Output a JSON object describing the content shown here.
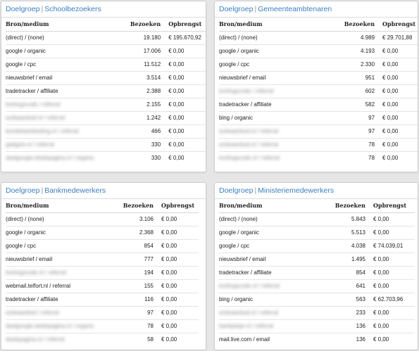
{
  "panels": [
    {
      "prefix": "Doelgroep",
      "separator": "|",
      "name": "Schoolbezoekers",
      "headers": {
        "source": "Bron/medium",
        "visits": "Bezoeken",
        "revenue": "Opbrengst"
      },
      "rows": [
        {
          "source": "(direct) / (none)",
          "visits": "19.180",
          "revenue": "€ 195.670,92"
        },
        {
          "source": "google / organic",
          "visits": "17.006",
          "revenue": "€ 0,00"
        },
        {
          "source": "google / cpc",
          "visits": "11.512",
          "revenue": "€ 0,00"
        },
        {
          "source": "nieuwsbrief / email",
          "visits": "3.514",
          "revenue": "€ 0,00"
        },
        {
          "source": "tradetracker / affiliate",
          "visits": "2.388",
          "revenue": "€ 0,00"
        },
        {
          "source": "kortingscode / referral",
          "visits": "2.155",
          "revenue": "€ 0,00",
          "blurred": true
        },
        {
          "source": "actieaanbod.nl / referral",
          "visits": "1.242",
          "revenue": "€ 0,00",
          "blurred": true
        },
        {
          "source": "bundelaanbieding.nl / referral",
          "visits": "466",
          "revenue": "€ 0,00",
          "blurred": true
        },
        {
          "source": "gadgets.nl / referral",
          "visits": "330",
          "revenue": "€ 0,00",
          "blurred": true
        },
        {
          "source": "dealgoogle.dealspagina.nl / organic",
          "visits": "330",
          "revenue": "€ 0,00",
          "blurred": true
        }
      ]
    },
    {
      "prefix": "Doelgroep",
      "separator": "|",
      "name": "Gemeenteambtenaren",
      "headers": {
        "source": "Bron/medium",
        "visits": "Bezoeken",
        "revenue": "Opbrengst"
      },
      "rows": [
        {
          "source": "(direct) / (none)",
          "visits": "4.989",
          "revenue": "€ 29.701,88"
        },
        {
          "source": "google / organic",
          "visits": "4.193",
          "revenue": "€ 0,00"
        },
        {
          "source": "google / cpc",
          "visits": "2.330",
          "revenue": "€ 0,00"
        },
        {
          "source": "nieuwsbrief / email",
          "visits": "951",
          "revenue": "€ 0,00"
        },
        {
          "source": "kortingscode / referral",
          "visits": "602",
          "revenue": "€ 0,00",
          "blurred": true
        },
        {
          "source": "tradetracker / affiliate",
          "visits": "582",
          "revenue": "€ 0,00"
        },
        {
          "source": "bing / organic",
          "visits": "97",
          "revenue": "€ 0,00"
        },
        {
          "source": "actieaanbod.nl / referral",
          "visits": "97",
          "revenue": "€ 0,00",
          "blurred": true
        },
        {
          "source": "actieaanbod.nl / referral",
          "visits": "78",
          "revenue": "€ 0,00",
          "blurred": true
        },
        {
          "source": "kortingscode.nl / referral",
          "visits": "78",
          "revenue": "€ 0,00",
          "blurred": true
        }
      ]
    },
    {
      "prefix": "Doelgroep",
      "separator": "|",
      "name": "Bankmedewerkers",
      "headers": {
        "source": "Bron/medium",
        "visits": "Bezoeken",
        "revenue": "Opbrengst"
      },
      "rows": [
        {
          "source": "(direct) / (none)",
          "visits": "3.106",
          "revenue": "€ 0,00"
        },
        {
          "source": "google / organic",
          "visits": "2.368",
          "revenue": "€ 0,00"
        },
        {
          "source": "google / cpc",
          "visits": "854",
          "revenue": "€ 0,00"
        },
        {
          "source": "nieuwsbrief / email",
          "visits": "777",
          "revenue": "€ 0,00"
        },
        {
          "source": "kortingscode.nl / referral",
          "visits": "194",
          "revenue": "€ 0,00",
          "blurred": true
        },
        {
          "source": "webmail.telfort.nl / referral",
          "visits": "155",
          "revenue": "€ 0,00"
        },
        {
          "source": "tradetracker / affiliate",
          "visits": "116",
          "revenue": "€ 0,00"
        },
        {
          "source": "actieaanbod / referral",
          "visits": "97",
          "revenue": "€ 0,00",
          "blurred": true
        },
        {
          "source": "dealgoogle.dealspagina.nl / organic",
          "visits": "78",
          "revenue": "€ 0,00",
          "blurred": true
        },
        {
          "source": "dealspagina.nl / referral",
          "visits": "58",
          "revenue": "€ 0,00",
          "blurred": true
        }
      ]
    },
    {
      "prefix": "Doelgroep",
      "separator": "|",
      "name": "Ministeriemedewerkers",
      "headers": {
        "source": "Bron/medium",
        "visits": "Bezoeken",
        "revenue": "Opbrengst"
      },
      "rows": [
        {
          "source": "(direct) / (none)",
          "visits": "5.843",
          "revenue": "€ 0,00"
        },
        {
          "source": "google / organic",
          "visits": "5.513",
          "revenue": "€ 0,00"
        },
        {
          "source": "google / cpc",
          "visits": "4.038",
          "revenue": "€ 74.039,01"
        },
        {
          "source": "nieuwsbrief / email",
          "visits": "1.495",
          "revenue": "€ 0,00"
        },
        {
          "source": "tradetracker / affiliate",
          "visits": "854",
          "revenue": "€ 0,00"
        },
        {
          "source": "kortingscode.nl / referral",
          "visits": "641",
          "revenue": "€ 0,00",
          "blurred": true
        },
        {
          "source": "bing / organic",
          "visits": "563",
          "revenue": "€ 62.703,96"
        },
        {
          "source": "actieaanbod.nl / referral",
          "visits": "233",
          "revenue": "€ 0,00",
          "blurred": true
        },
        {
          "source": "bankpasje.nl / referral",
          "visits": "136",
          "revenue": "€ 0,00",
          "blurred": true
        },
        {
          "source": "mail.live.com / email",
          "visits": "136",
          "revenue": "€ 0,00"
        }
      ]
    }
  ],
  "colors": {
    "title": "#3a7fc2",
    "background": "#e6e6e6",
    "panel": "#ffffff"
  }
}
